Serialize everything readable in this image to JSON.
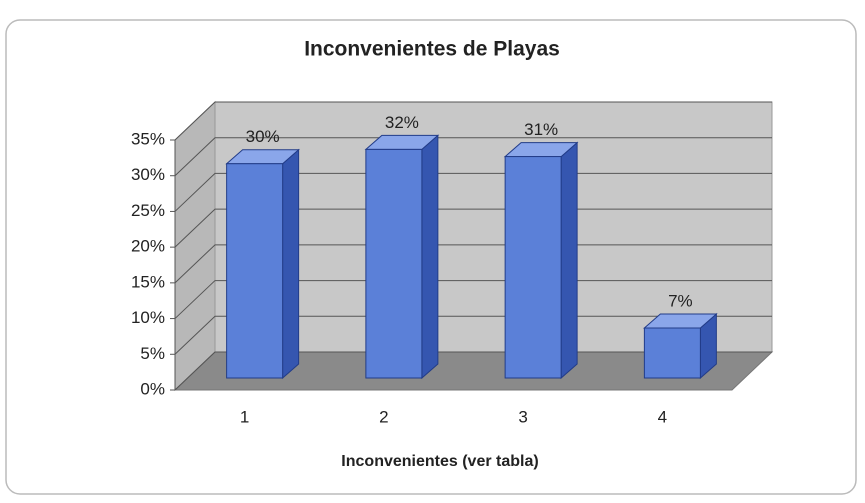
{
  "chart_data": {
    "type": "bar3d",
    "title": "Inconvenientes de Playas",
    "x_label": "Inconvenientes (ver tabla)",
    "categories": [
      "1",
      "2",
      "3",
      "4"
    ],
    "values": [
      30,
      32,
      31,
      7
    ],
    "value_labels": [
      "30%",
      "32%",
      "31%",
      "7%"
    ],
    "color": "#5b80d8",
    "ylim": [
      0,
      35
    ],
    "yticks": [
      {
        "value": 0,
        "label": "0%"
      },
      {
        "value": 5,
        "label": "5%"
      },
      {
        "value": 10,
        "label": "10%"
      },
      {
        "value": 15,
        "label": "15%"
      },
      {
        "value": 20,
        "label": "20%"
      },
      {
        "value": 25,
        "label": "25%"
      },
      {
        "value": 30,
        "label": "30%"
      },
      {
        "value": 35,
        "label": "35%"
      }
    ],
    "grid": true
  }
}
